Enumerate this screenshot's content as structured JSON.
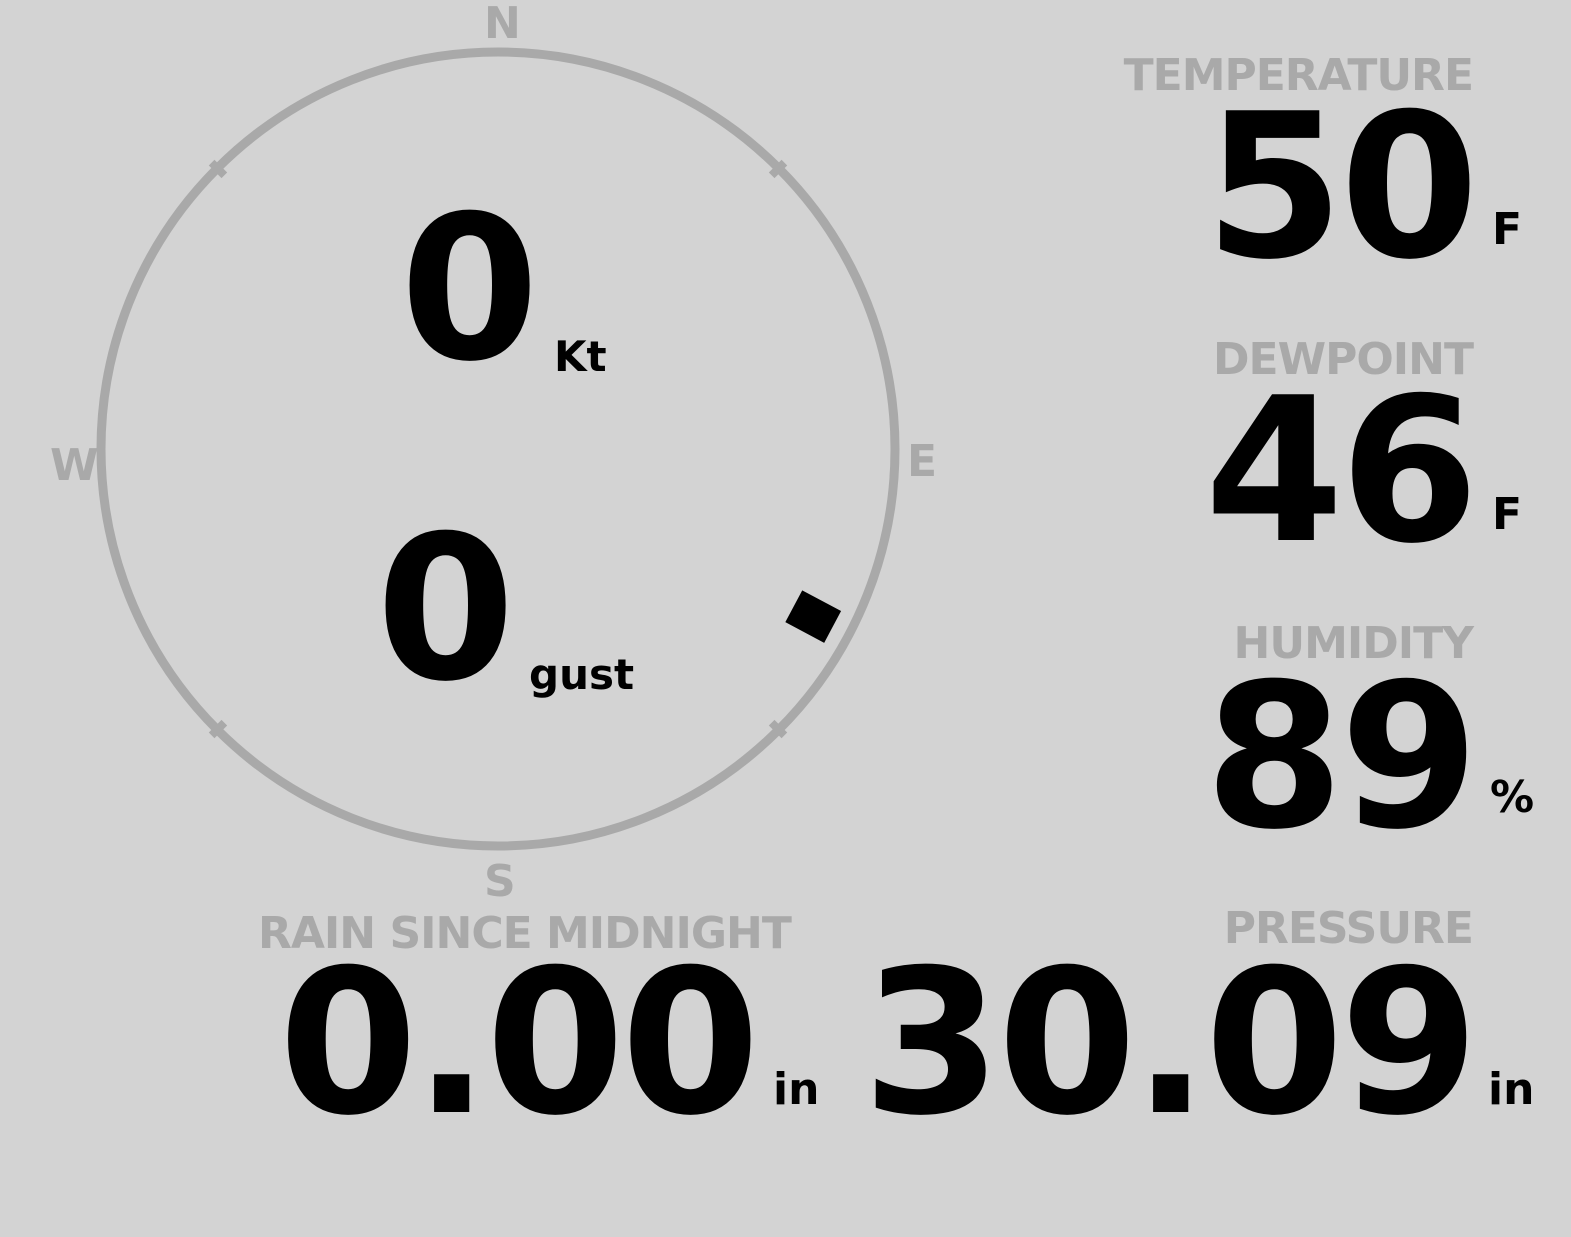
{
  "wind": {
    "speed": "0",
    "speed_unit": "Kt",
    "gust": "0",
    "gust_unit": "gust",
    "direction_deg": 118,
    "compass": {
      "n": "N",
      "e": "E",
      "s": "S",
      "w": "W"
    }
  },
  "temperature": {
    "label": "TEMPERATURE",
    "value": "50",
    "unit": "F"
  },
  "dewpoint": {
    "label": "DEWPOINT",
    "value": "46",
    "unit": "F"
  },
  "humidity": {
    "label": "HUMIDITY",
    "value": "89",
    "unit": "%"
  },
  "pressure": {
    "label": "PRESSURE",
    "value": "30.09",
    "unit": "in"
  },
  "rain": {
    "label": "RAIN SINCE MIDNIGHT",
    "value": "0.00",
    "unit": "in"
  },
  "colors": {
    "background": "#d3d3d3",
    "dim": "#a9a9a9",
    "text": "#000000"
  }
}
